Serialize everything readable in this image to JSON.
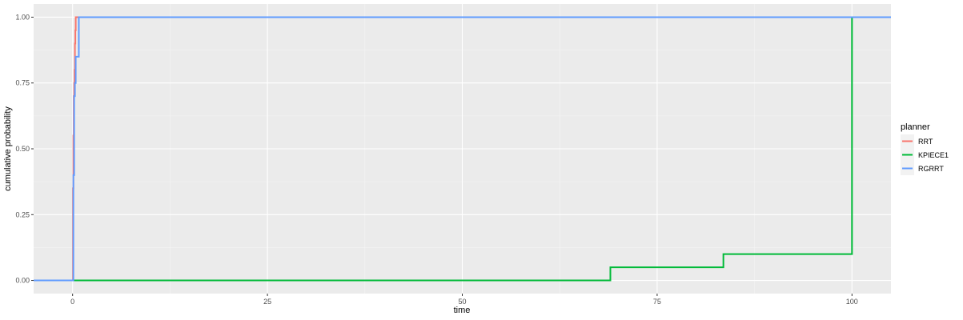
{
  "chart_data": {
    "type": "line",
    "xlabel": "time",
    "ylabel": "cumulative probability",
    "xlim": [
      -5,
      105
    ],
    "ylim": [
      -0.05,
      1.05
    ],
    "x_ticks": [
      0,
      25,
      50,
      75,
      100
    ],
    "y_ticks": [
      0.0,
      0.25,
      0.5,
      0.75,
      1.0
    ],
    "x_tick_labels": [
      "0",
      "25",
      "50",
      "75",
      "100"
    ],
    "y_tick_labels": [
      "0.00",
      "0.25",
      "0.50",
      "0.75",
      "1.00"
    ],
    "grid": true,
    "legend": {
      "title": "planner",
      "position": "right"
    },
    "series": [
      {
        "name": "RRT",
        "color": "#F8766D",
        "step": true,
        "x": [
          -5,
          0.05,
          0.1,
          0.15,
          0.2,
          0.25,
          0.3,
          0.35,
          0.4,
          0.5,
          105
        ],
        "y": [
          0,
          0.35,
          0.55,
          0.7,
          0.75,
          0.8,
          0.9,
          0.95,
          1.0,
          1.0,
          1.0
        ]
      },
      {
        "name": "KPIECE1",
        "color": "#00BA38",
        "step": true,
        "x": [
          -5,
          69,
          83.5,
          100,
          105
        ],
        "y": [
          0,
          0.05,
          0.1,
          1.0,
          1.0
        ]
      },
      {
        "name": "RGRRT",
        "color": "#619CFF",
        "step": true,
        "x": [
          -5,
          0.1,
          0.2,
          0.3,
          0.4,
          0.5,
          0.8,
          105
        ],
        "y": [
          0,
          0.4,
          0.7,
          0.75,
          0.85,
          0.85,
          1.0,
          1.0
        ]
      }
    ]
  }
}
